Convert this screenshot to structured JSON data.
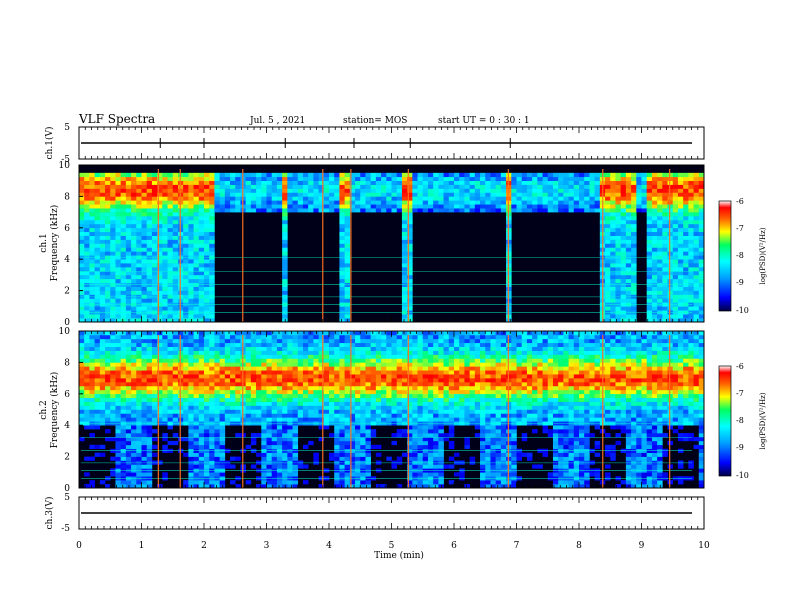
{
  "header": {
    "title": "VLF Spectra",
    "date": "Jul. 5 , 2021",
    "station": "station= MOS",
    "start": "start UT = 0 : 30 : 1"
  },
  "chart_data": [
    {
      "type": "line",
      "ylabel": "ch.1(V)",
      "ylim": [
        -5,
        5
      ],
      "yticklabels": [
        "5",
        "-5"
      ],
      "series": [
        {
          "values_x_min": [
            0,
            10
          ],
          "values_y": [
            0,
            0
          ]
        }
      ]
    },
    {
      "type": "heatmap",
      "ylabel": "ch.1\nFrequency (kHz)",
      "ylabel_lines": [
        "ch.1",
        "Frequency (kHz)"
      ],
      "ylim": [
        0,
        10
      ],
      "yticks": [
        0,
        2,
        4,
        6,
        8,
        10
      ],
      "xlim": [
        0,
        10
      ],
      "colorbar": {
        "label": "log(PSD)(V²/Hz)",
        "range": [
          -10,
          -6
        ],
        "ticks": [
          "-6",
          "-7",
          "-8",
          "-9",
          "-10"
        ]
      },
      "dark_gaps_min": [
        [
          2.15,
          3.25
        ],
        [
          3.3,
          4.2
        ],
        [
          4.3,
          5.2
        ],
        [
          5.35,
          5.9
        ],
        [
          5.95,
          6.85
        ],
        [
          6.9,
          8.35
        ],
        [
          8.95,
          9.05
        ]
      ],
      "bright_lines_min": [
        1.27,
        1.62,
        2.62,
        3.9,
        4.35,
        5.27,
        6.87,
        8.38,
        9.45
      ]
    },
    {
      "type": "heatmap",
      "ylabel": "ch.2\nFrequency (kHz)",
      "ylabel_lines": [
        "ch.2",
        "Frequency (kHz)"
      ],
      "ylim": [
        0,
        10
      ],
      "yticks": [
        0,
        2,
        4,
        6,
        8,
        10
      ],
      "xlim": [
        0,
        10
      ],
      "colorbar": {
        "label": "log(PSD)(V²/Hz)",
        "range": [
          -10,
          -6
        ],
        "ticks": [
          "-6",
          "-7",
          "-8",
          "-9",
          "-10"
        ]
      },
      "band_center_khz": 7,
      "bright_lines_min": [
        1.27,
        1.62,
        2.62,
        3.9,
        4.35,
        5.27,
        6.87,
        8.38,
        9.45
      ]
    },
    {
      "type": "line",
      "ylabel": "ch.3(V)",
      "ylim": [
        -5,
        5
      ],
      "yticklabels": [
        "5",
        "-5"
      ],
      "series": [
        {
          "values_x_min": [
            0,
            10
          ],
          "values_y": [
            0,
            0
          ]
        }
      ]
    }
  ],
  "xaxis": {
    "label": "Time (min)",
    "range": [
      0,
      10
    ],
    "ticks": [
      "0",
      "1",
      "2",
      "3",
      "4",
      "5",
      "6",
      "7",
      "8",
      "9",
      "10"
    ]
  },
  "colors": {
    "colormap": [
      "#000000",
      "#00004a",
      "#0000ff",
      "#00a0ff",
      "#00ffff",
      "#00ff80",
      "#ffff00",
      "#ff8000",
      "#ff0000",
      "#ffffff"
    ]
  }
}
